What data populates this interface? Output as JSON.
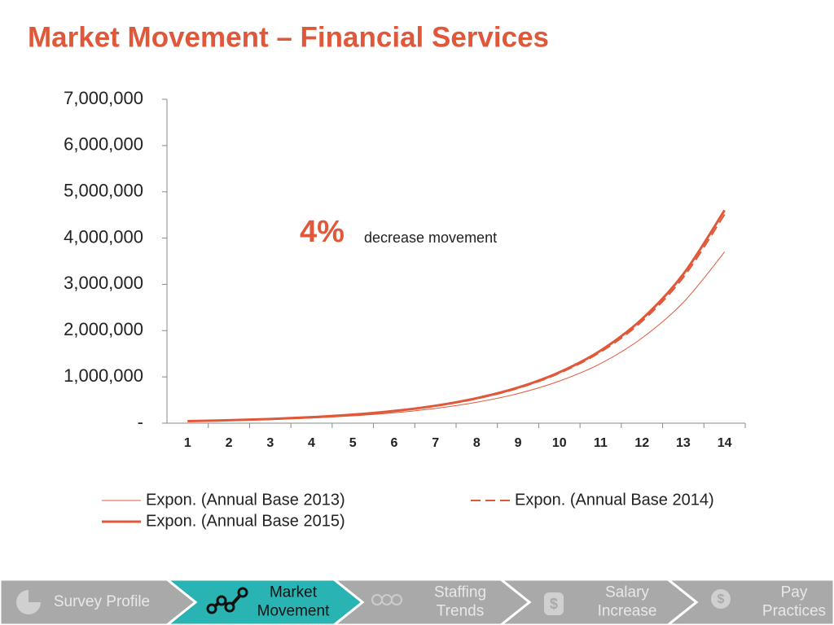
{
  "chart_data": {
    "type": "line",
    "title": "Market Movement – Financial Services",
    "categories": [
      "1",
      "2",
      "3",
      "4",
      "5",
      "6",
      "7",
      "8",
      "9",
      "10",
      "11",
      "12",
      "13",
      "14"
    ],
    "series": [
      {
        "name": "Expon. (Annual Base 2013)",
        "color": "#e0583a",
        "width": 1,
        "dash": false,
        "values": [
          39000,
          55000,
          78000,
          111000,
          158000,
          224000,
          318000,
          452000,
          640000,
          910000,
          1290000,
          1840000,
          2610000,
          3700000
        ]
      },
      {
        "name": "Expon. (Annual Base 2014)",
        "color": "#e0583a",
        "width": 2,
        "dash": true,
        "values": [
          43000,
          62000,
          88000,
          126000,
          180000,
          259000,
          369000,
          529000,
          755000,
          1080000,
          1540000,
          2200000,
          3150000,
          4510000
        ]
      },
      {
        "name": "Expon. (Annual Base 2015)",
        "color": "#e0583a",
        "width": 3,
        "dash": false,
        "values": [
          44000,
          63000,
          90000,
          129000,
          184000,
          264000,
          377000,
          540000,
          770000,
          1100000,
          1570000,
          2250000,
          3220000,
          4600000
        ]
      }
    ],
    "ylim": [
      0,
      7000000
    ],
    "yticks": [
      {
        "value": 0,
        "label": "-"
      },
      {
        "value": 1000000,
        "label": "1,000,000"
      },
      {
        "value": 2000000,
        "label": "2,000,000"
      },
      {
        "value": 3000000,
        "label": "3,000,000"
      },
      {
        "value": 4000000,
        "label": "4,000,000"
      },
      {
        "value": 5000000,
        "label": "5,000,000"
      },
      {
        "value": 6000000,
        "label": "6,000,000"
      },
      {
        "value": 7000000,
        "label": "7,000,000"
      }
    ],
    "annotation": {
      "highlight": "4%",
      "text": "decrease movement"
    }
  },
  "nav": [
    {
      "lines": [
        "Survey Profile"
      ],
      "active": false
    },
    {
      "lines": [
        "Market",
        "Movement"
      ],
      "active": true
    },
    {
      "lines": [
        "Staffing",
        "Trends"
      ],
      "active": false
    },
    {
      "lines": [
        "Salary",
        "Increase"
      ],
      "active": false
    },
    {
      "lines": [
        "Pay",
        "Practices"
      ],
      "active": false
    }
  ]
}
